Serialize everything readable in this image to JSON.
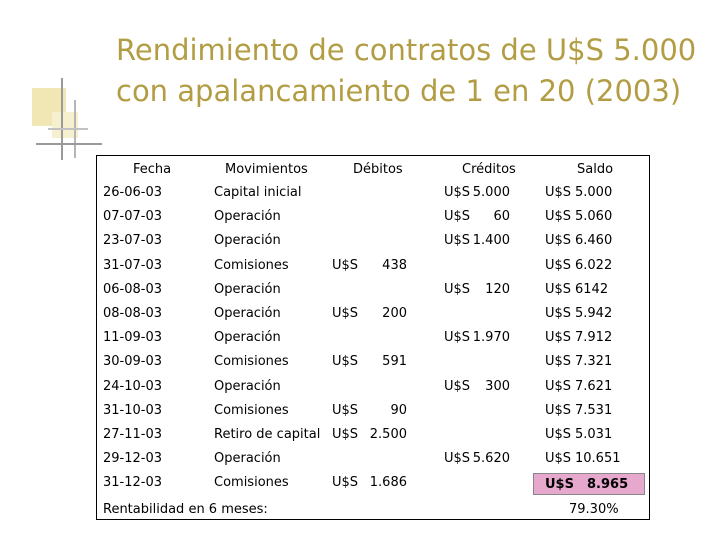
{
  "title": {
    "line1": "Rendimiento de contratos de U$S 5.000",
    "line2": "con apalancamiento de 1 en 20 (2003)"
  },
  "columns": {
    "fecha": "Fecha",
    "movimientos": "Movimientos",
    "debitos": "Débitos",
    "creditos": "Créditos",
    "saldo": "Saldo"
  },
  "rows": [
    {
      "fecha": "26-06-03",
      "mov": "Capital inicial",
      "deb_cur": "",
      "deb": "",
      "cred_cur": "U$S",
      "cred": "5.000",
      "saldo_cur": "U$S",
      "saldo": "5.000"
    },
    {
      "fecha": "07-07-03",
      "mov": "Operación",
      "deb_cur": "",
      "deb": "",
      "cred_cur": "U$S",
      "cred": "60",
      "saldo_cur": "U$S",
      "saldo": "5.060"
    },
    {
      "fecha": "23-07-03",
      "mov": "Operación",
      "deb_cur": "",
      "deb": "",
      "cred_cur": "U$S",
      "cred": "1.400",
      "saldo_cur": "U$S",
      "saldo": "6.460"
    },
    {
      "fecha": "31-07-03",
      "mov": "Comisiones",
      "deb_cur": "U$S",
      "deb": "438",
      "cred_cur": "",
      "cred": "",
      "saldo_cur": "U$S",
      "saldo": "6.022"
    },
    {
      "fecha": "06-08-03",
      "mov": "Operación",
      "deb_cur": "",
      "deb": "",
      "cred_cur": "U$S",
      "cred": "120",
      "saldo_cur": "U$S",
      "saldo": "6142"
    },
    {
      "fecha": "08-08-03",
      "mov": "Operación",
      "deb_cur": "U$S",
      "deb": "200",
      "cred_cur": "",
      "cred": "",
      "saldo_cur": "U$S",
      "saldo": "5.942"
    },
    {
      "fecha": "11-09-03",
      "mov": "Operación",
      "deb_cur": "",
      "deb": "",
      "cred_cur": "U$S",
      "cred": "1.970",
      "saldo_cur": "U$S",
      "saldo": "7.912"
    },
    {
      "fecha": "30-09-03",
      "mov": "Comisiones",
      "deb_cur": "U$S",
      "deb": "591",
      "cred_cur": "",
      "cred": "",
      "saldo_cur": "U$S",
      "saldo": "7.321"
    },
    {
      "fecha": "24-10-03",
      "mov": "Operación",
      "deb_cur": "",
      "deb": "",
      "cred_cur": "U$S",
      "cred": "300",
      "saldo_cur": "U$S",
      "saldo": "7.621"
    },
    {
      "fecha": "31-10-03",
      "mov": "Comisiones",
      "deb_cur": "U$S",
      "deb": "90",
      "cred_cur": "",
      "cred": "",
      "saldo_cur": "U$S",
      "saldo": "7.531"
    },
    {
      "fecha": "27-11-03",
      "mov": "Retiro de capital",
      "deb_cur": "U$S",
      "deb": "2.500",
      "cred_cur": "",
      "cred": "",
      "saldo_cur": "U$S",
      "saldo": "5.031"
    },
    {
      "fecha": "29-12-03",
      "mov": "Operación",
      "deb_cur": "",
      "deb": "",
      "cred_cur": "U$S",
      "cred": "5.620",
      "saldo_cur": "U$S",
      "saldo": "10.651"
    },
    {
      "fecha": "31-12-03",
      "mov": "Comisiones",
      "deb_cur": "U$S",
      "deb": "1.686",
      "cred_cur": "",
      "cred": "",
      "saldo_cur": "U$S",
      "saldo": "8.965"
    }
  ],
  "rentabilidad": {
    "label": "Rentabilidad en 6 meses:",
    "value": "79.30%"
  },
  "colors": {
    "title": "#b39d44",
    "final_highlight": "#e6a8cd"
  }
}
